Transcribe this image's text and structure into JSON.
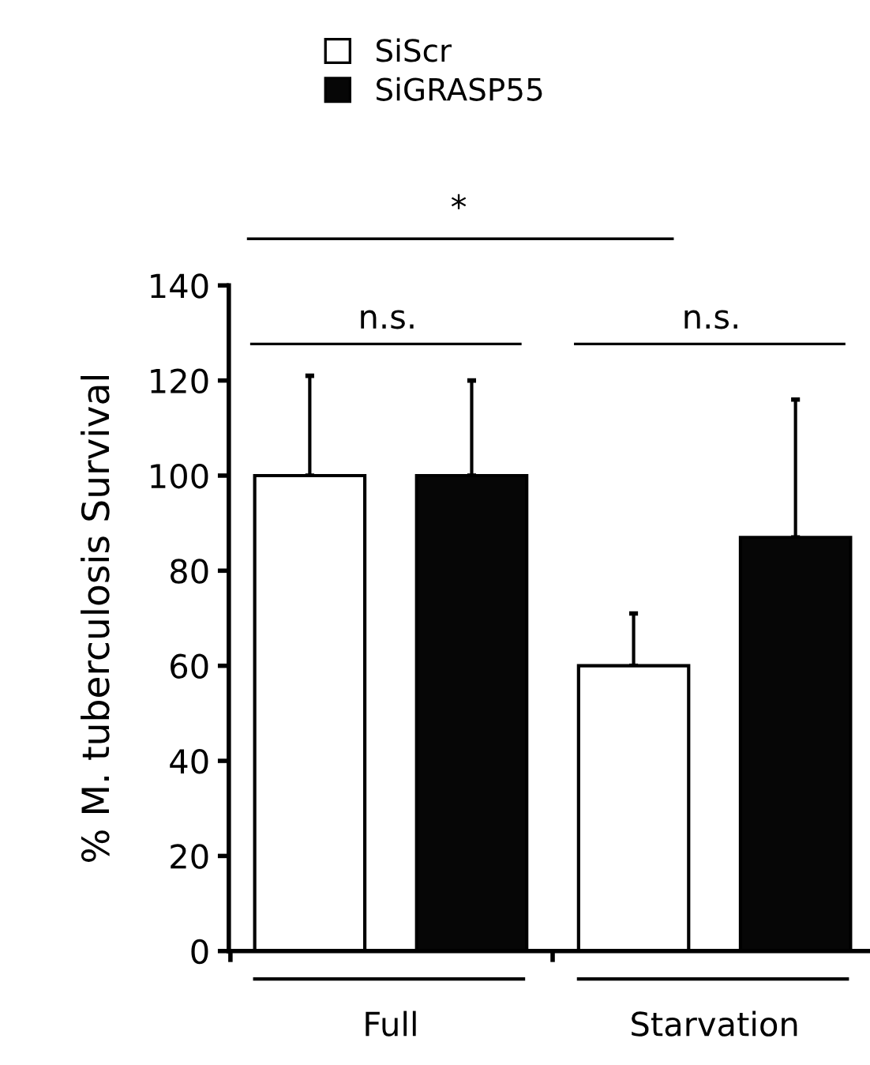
{
  "chart_data": {
    "type": "bar",
    "categories": [
      "Full",
      "Starvation"
    ],
    "ylabel": "% M. tuberculosis Survival",
    "series": [
      {
        "name": "SiScr",
        "color": "#ffffff",
        "values": [
          100,
          60
        ],
        "errors": [
          [
            100,
            121
          ],
          [
            60,
            71
          ]
        ]
      },
      {
        "name": "SiGRASP55",
        "color": "#060606",
        "values": [
          100,
          87
        ],
        "errors": [
          [
            100,
            120
          ],
          [
            87,
            116
          ]
        ]
      }
    ],
    "ylim": [
      0,
      140
    ],
    "yticks": [
      0,
      20,
      40,
      60,
      80,
      100,
      120,
      140
    ],
    "grid": false,
    "legend": "top",
    "annotations": [
      "*",
      "n.s.",
      "n.s."
    ]
  }
}
